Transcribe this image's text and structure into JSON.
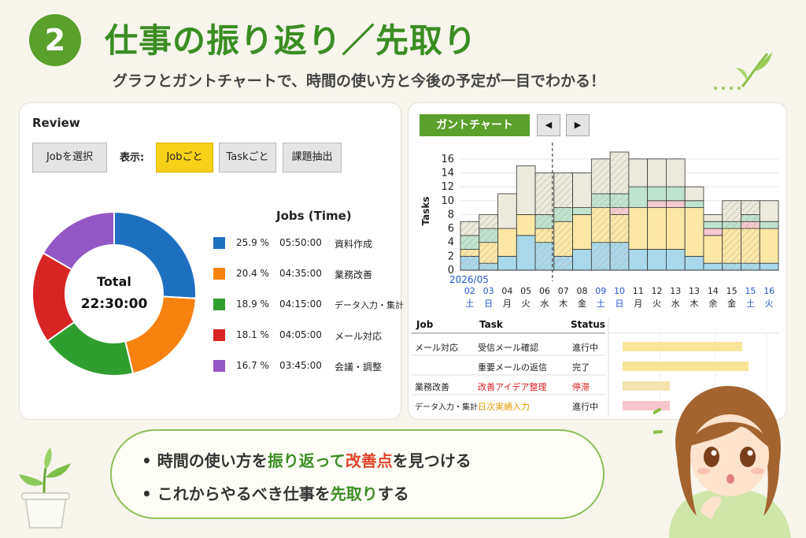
{
  "header": {
    "badge_number": "2",
    "title": "仕事の振り返り／先取り",
    "subtitle": "グラフとガントチャートで、時間の使い方と今後の予定が一目でわかる！"
  },
  "review": {
    "title": "Review",
    "select_job_button": "Jobを選択",
    "display_label": "表示:",
    "by_job_button": "Jobごと",
    "by_task_button": "Taskごと",
    "extract_issues_button": "課題抽出",
    "total_label": "Total",
    "total_value": "22:30:00",
    "legend_title": "Jobs (Time)",
    "legend": [
      {
        "pct": "25.9 %",
        "time": "05:50:00",
        "name": "資料作成",
        "color": "#1f6fc1"
      },
      {
        "pct": "20.4 %",
        "time": "04:35:00",
        "name": "業務改善",
        "color": "#f7820f"
      },
      {
        "pct": "18.9 %",
        "time": "04:15:00",
        "name": "データ入力・集計",
        "color": "#2f9e2f"
      },
      {
        "pct": "18.1 %",
        "time": "04:05:00",
        "name": "メール対応",
        "color": "#d92424"
      },
      {
        "pct": "16.7 %",
        "time": "03:45:00",
        "name": "会議・調整",
        "color": "#9457c4"
      }
    ]
  },
  "gantt": {
    "label": "ガントチャート",
    "prev_icon": "◀",
    "next_icon": "▶",
    "table_headers": {
      "job": "Job",
      "task": "Task",
      "status": "Status"
    },
    "rows": [
      {
        "job": "メール対応",
        "task": "受信メール確認",
        "status": "進行中",
        "task_color": "normal",
        "status_color": "normal",
        "bar_color": "#f8e59a"
      },
      {
        "job": "",
        "task": "重要メールの返信",
        "status": "完了",
        "task_color": "normal",
        "status_color": "normal",
        "bar_color": "#f8e59a"
      },
      {
        "job": "業務改善",
        "task": "改善アイデア整理",
        "status": "停滞",
        "task_color": "red",
        "status_color": "red",
        "bar_color": "#f2e3b0"
      },
      {
        "job": "データ入力・集計",
        "task": "日次実績入力",
        "status": "進行中",
        "task_color": "orange",
        "status_color": "normal",
        "bar_color": "#f7c6cc"
      }
    ]
  },
  "chart_data": {
    "type": "bar",
    "ylabel": "Tasks",
    "ylim": [
      0,
      17
    ],
    "yticks": [
      0,
      2,
      4,
      6,
      8,
      10,
      12,
      14,
      16
    ],
    "month_label": "2026/05",
    "categories": [
      {
        "day": "02",
        "weekday": "土",
        "color": "blue"
      },
      {
        "day": "03",
        "weekday": "日",
        "color": "blue"
      },
      {
        "day": "04",
        "weekday": "月",
        "color": "normal"
      },
      {
        "day": "05",
        "weekday": "火",
        "color": "normal"
      },
      {
        "day": "06",
        "weekday": "水",
        "color": "normal"
      },
      {
        "day": "07",
        "weekday": "木",
        "color": "normal"
      },
      {
        "day": "08",
        "weekday": "金",
        "color": "normal"
      },
      {
        "day": "09",
        "weekday": "土",
        "color": "blue"
      },
      {
        "day": "10",
        "weekday": "日",
        "color": "blue"
      },
      {
        "day": "11",
        "weekday": "月",
        "color": "normal"
      },
      {
        "day": "12",
        "weekday": "火",
        "color": "normal"
      },
      {
        "day": "13",
        "weekday": "水",
        "color": "normal"
      },
      {
        "day": "13",
        "weekday": "木",
        "color": "normal"
      },
      {
        "day": "14",
        "weekday": "余",
        "color": "normal"
      },
      {
        "day": "15",
        "weekday": "金",
        "color": "normal"
      },
      {
        "day": "15",
        "weekday": "土",
        "color": "blue"
      },
      {
        "day": "16",
        "weekday": "火",
        "color": "blue"
      }
    ],
    "today_index": 5,
    "series": [
      {
        "color": "#a8d8ea",
        "values": [
          2,
          1,
          2,
          5,
          4,
          2,
          3,
          4,
          4,
          3,
          3,
          3,
          2,
          1,
          1,
          1,
          1
        ]
      },
      {
        "color": "#fbe8a6",
        "values": [
          1,
          3,
          4,
          3,
          2,
          5,
          5,
          5,
          4,
          6,
          6,
          6,
          7,
          4,
          5,
          5,
          5
        ]
      },
      {
        "color": "#f6c9cf",
        "values": [
          0,
          0,
          0,
          0,
          0,
          0,
          0,
          0,
          1,
          0,
          1,
          1,
          0,
          1,
          0,
          1,
          0
        ]
      },
      {
        "color": "#bfe3cf",
        "values": [
          2,
          2,
          0,
          0,
          2,
          2,
          1,
          2,
          2,
          3,
          2,
          2,
          1,
          1,
          1,
          1,
          1
        ]
      },
      {
        "color": "#eceadd",
        "values": [
          2,
          2,
          5,
          7,
          6,
          5,
          5,
          5,
          6,
          4,
          4,
          4,
          2,
          1,
          3,
          2,
          3
        ]
      }
    ],
    "hatched": [
      0,
      1,
      4,
      5,
      7,
      8,
      14,
      15
    ]
  },
  "bubble": {
    "line1": {
      "a": "時間の使い方を",
      "b": "振り返って",
      "c": "改善点",
      "d": "を見つける"
    },
    "line2": {
      "a": "これからやるべき仕事を",
      "b": "先取り",
      "c": "する"
    }
  }
}
